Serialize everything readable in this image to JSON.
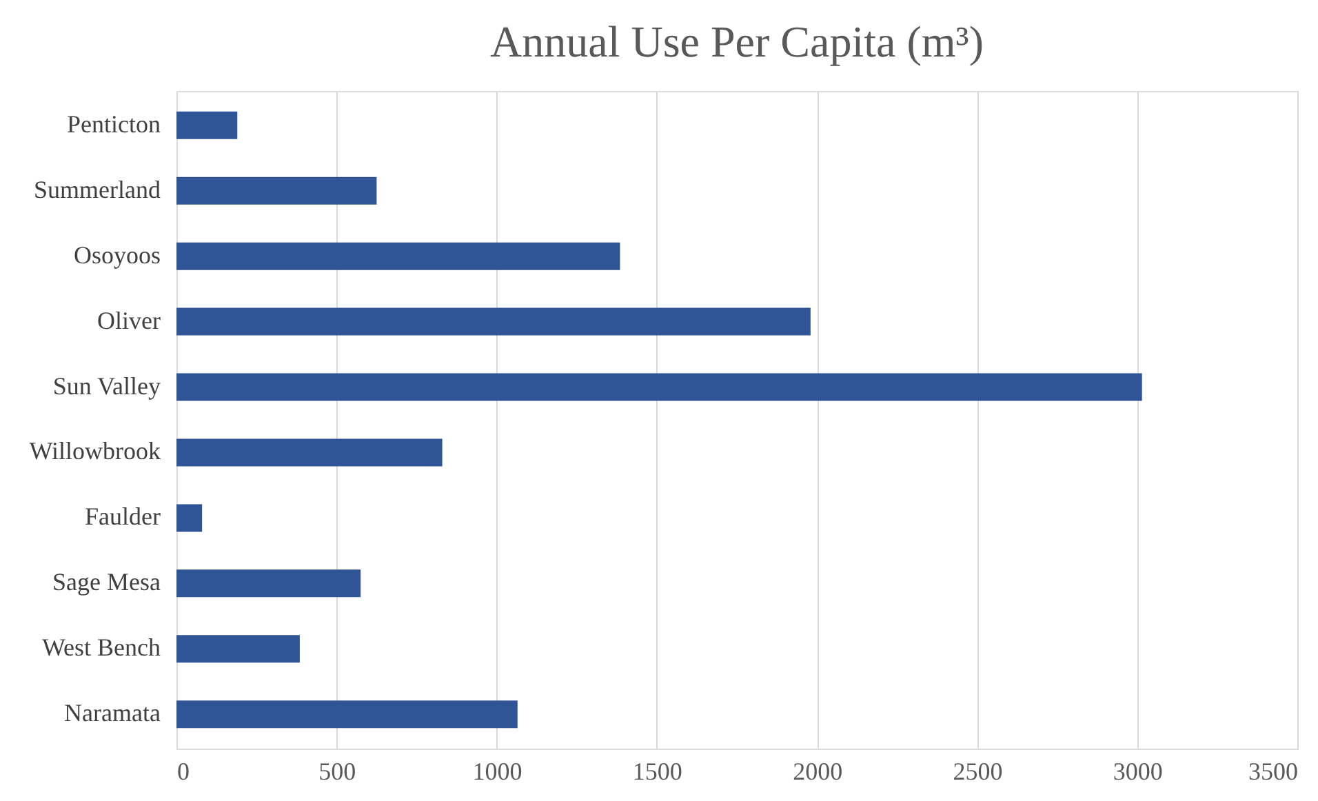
{
  "chart_data": {
    "type": "bar",
    "orientation": "horizontal",
    "title": "Annual Use Per Capita (m³)",
    "categories": [
      "Penticton",
      "Summerland",
      "Osoyoos",
      "Oliver",
      "Sun Valley",
      "Willowbrook",
      "Faulder",
      "Sage Mesa",
      "West Bench",
      "Naramata"
    ],
    "values": [
      190,
      625,
      1385,
      1980,
      3015,
      830,
      80,
      575,
      385,
      1065
    ],
    "color": "#2f5597",
    "xlim": [
      0,
      3500
    ],
    "xticks": [
      0,
      500,
      1000,
      1500,
      2000,
      2500,
      3000,
      3500
    ],
    "grid": "x"
  }
}
